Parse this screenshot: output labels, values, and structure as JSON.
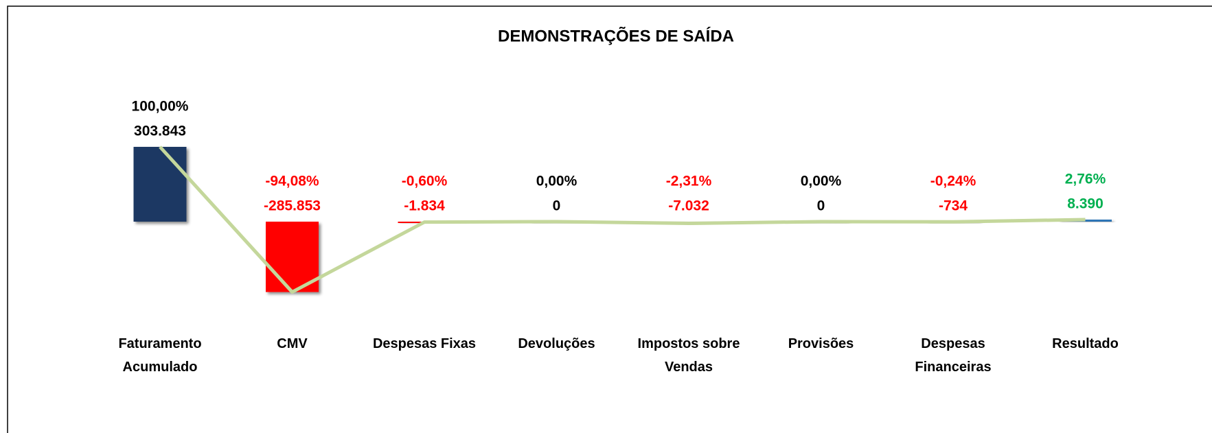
{
  "chart_data": {
    "type": "bar",
    "title": "DEMONSTRAÇÕES DE SAÍDA",
    "categories": [
      "Faturamento Acumulado",
      "CMV",
      "Despesas Fixas",
      "Devoluções",
      "Impostos sobre Vendas",
      "Provisões",
      "Despesas Financeiras",
      "Resultado"
    ],
    "values": [
      303843,
      -285853,
      -1834,
      0,
      -7032,
      0,
      -734,
      8390
    ],
    "value_labels": [
      "303.843",
      "-285.853",
      "-1.834",
      "0",
      "-7.032",
      "0",
      "-734",
      "8.390"
    ],
    "percents": [
      100,
      -94.08,
      -0.6,
      0,
      -2.31,
      0,
      -0.24,
      2.76
    ],
    "percent_labels": [
      "100,00%",
      "-94,08%",
      "-0,60%",
      "0,00%",
      "-2,31%",
      "0,00%",
      "-0,24%",
      "2,76%"
    ],
    "colors": [
      "#1f3864",
      "#ff0000",
      "#ff0000",
      "#ff0000",
      "#ff0000",
      "#ff0000",
      "#ff0000",
      "#2e75b6"
    ],
    "label_colors": [
      "#000000",
      "#ff0000",
      "#ff0000",
      "#000000",
      "#ff0000",
      "#000000",
      "#ff0000",
      "#00b050"
    ],
    "line_color": "#c4d79b"
  }
}
